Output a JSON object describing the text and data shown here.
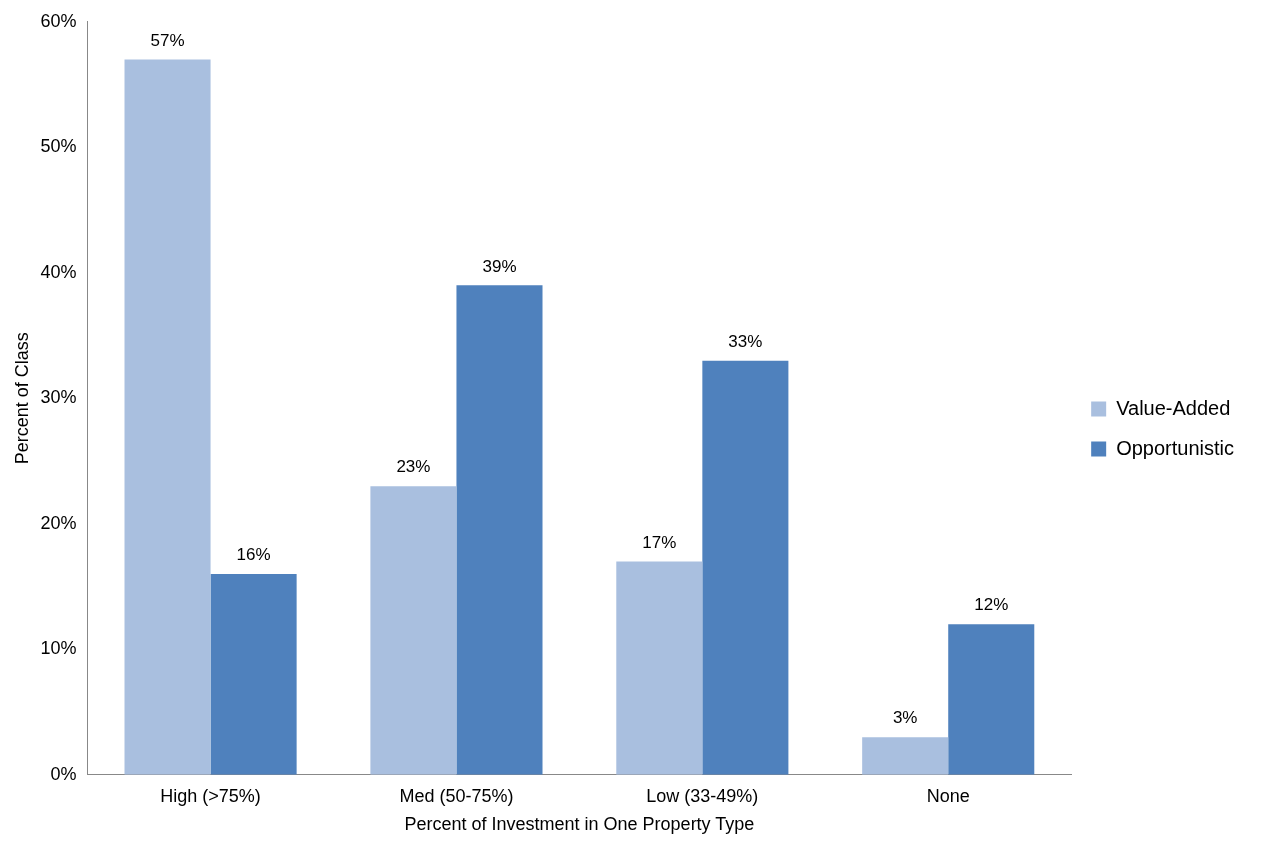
{
  "chart_data": {
    "type": "bar",
    "xlabel": "Percent of Investment in One Property Type",
    "ylabel": "Percent of Class",
    "categories": [
      "High (>75%)",
      "Med (50-75%)",
      "Low (33-49%)",
      "None"
    ],
    "series": [
      {
        "name": "Value-Added",
        "color": "#a9bfdf",
        "values": [
          57,
          23,
          17,
          3
        ],
        "value_labels": [
          "57%",
          "23%",
          "17%",
          "3%"
        ]
      },
      {
        "name": "Opportunistic",
        "color": "#4f81bd",
        "values": [
          16,
          39,
          33,
          12
        ],
        "value_labels": [
          "16%",
          "39%",
          "33%",
          "12%"
        ]
      }
    ],
    "ylim": [
      0,
      60
    ],
    "yticks": [
      {
        "value": 0,
        "label": "0%"
      },
      {
        "value": 10,
        "label": "10%"
      },
      {
        "value": 20,
        "label": "20%"
      },
      {
        "value": 30,
        "label": "30%"
      },
      {
        "value": 40,
        "label": "40%"
      },
      {
        "value": 50,
        "label": "50%"
      },
      {
        "value": 60,
        "label": "60%"
      }
    ],
    "grid": false,
    "legend": "right"
  }
}
